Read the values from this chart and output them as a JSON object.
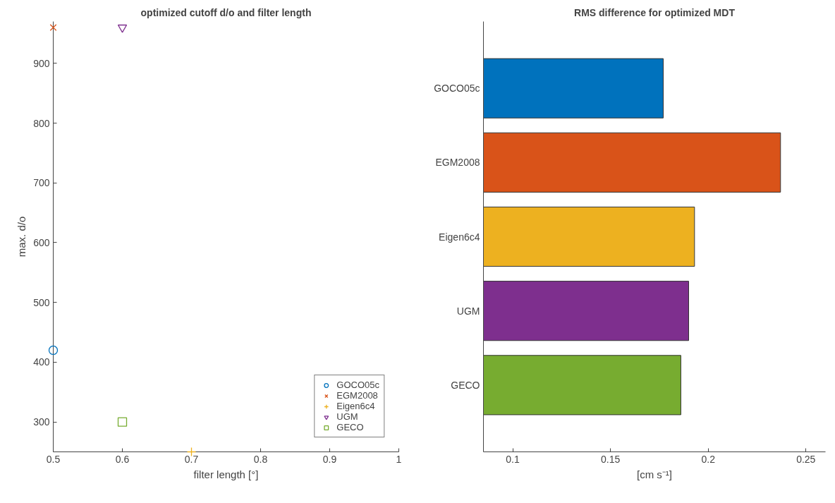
{
  "chart_data": [
    {
      "type": "scatter",
      "title": "optimized cutoff d/o and filter length",
      "xlabel": "filter length [°]",
      "ylabel": "max. d/o",
      "series": [
        {
          "name": "GOCO05c",
          "color": "#0072bd",
          "marker": "circle",
          "x": [
            0.5
          ],
          "values": [
            420
          ]
        },
        {
          "name": "EGM2008",
          "color": "#d95319",
          "marker": "x",
          "x": [
            0.5
          ],
          "values": [
            960
          ]
        },
        {
          "name": "Eigen6c4",
          "color": "#edb120",
          "marker": "cross",
          "x": [
            0.7
          ],
          "values": [
            250
          ]
        },
        {
          "name": "UGM",
          "color": "#7e2f8e",
          "marker": "triangle",
          "x": [
            0.6
          ],
          "values": [
            960
          ]
        },
        {
          "name": "GECO",
          "color": "#77ac30",
          "marker": "square",
          "x": [
            0.6
          ],
          "values": [
            300
          ]
        }
      ],
      "xlim": [
        0.5,
        1
      ],
      "xticks": [
        0.5,
        0.6,
        0.7,
        0.8,
        0.9,
        1
      ],
      "ylim": [
        250,
        970
      ],
      "yticks": [
        300,
        400,
        500,
        600,
        700,
        800,
        900
      ],
      "grid": false,
      "legend": "bottom right"
    },
    {
      "type": "bar",
      "orientation": "horizontal",
      "title": "RMS difference for optimized MDT",
      "xlabel": "[cm s⁻¹]",
      "categories": [
        "GOCO05c",
        "EGM2008",
        "Eigen6c4",
        "UGM",
        "GECO"
      ],
      "values": [
        0.177,
        0.237,
        0.193,
        0.19,
        0.186
      ],
      "colors": [
        "#0072bd",
        "#d95319",
        "#edb120",
        "#7e2f8e",
        "#77ac30"
      ],
      "xlim": [
        0.085,
        0.26
      ],
      "xticks": [
        0.1,
        0.15,
        0.2,
        0.25
      ],
      "grid": false
    }
  ]
}
